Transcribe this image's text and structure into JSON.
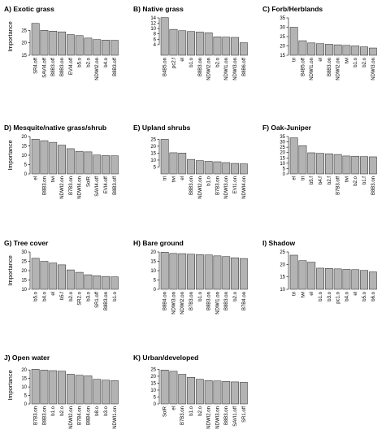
{
  "figure": {
    "colors": {
      "bar_fill": "#b3b3b3",
      "bar_stroke": "#222222",
      "axis": "#000000"
    }
  },
  "chart_data": [
    {
      "type": "bar",
      "title": "A) Exotic grass",
      "ylabel": "Importance",
      "ylim": [
        15,
        30
      ],
      "yticks": [
        15,
        20,
        25
      ],
      "categories": [
        "SR4.off",
        "SAVI4.off",
        "B8B3.off",
        "B8B3.on",
        "EVI4.off",
        "b5.o",
        "b2.o",
        "NDWI2.on",
        "b4.o",
        "B8B3.off"
      ],
      "values": [
        27.8,
        25.0,
        24.7,
        24.4,
        23.3,
        22.9,
        21.9,
        21.3,
        21.1,
        21.0
      ]
    },
    {
      "type": "bar",
      "title": "B) Native grass",
      "ylabel": "",
      "ylim": [
        0,
        14
      ],
      "yticks": [
        4,
        6,
        8,
        10,
        12,
        14
      ],
      "categories": [
        "B4B5.on",
        "pc2.f",
        "el",
        "b1.o",
        "B8B3.on",
        "NDWI2.on",
        "b2.o",
        "NDWI1.on",
        "NDWI3.on",
        "B8B6.off"
      ],
      "values": [
        14.1,
        9.7,
        9.2,
        8.9,
        8.7,
        8.4,
        6.9,
        6.8,
        6.7,
        4.7
      ]
    },
    {
      "type": "bar",
      "title": "C) Forb/Herblands",
      "ylabel": "",
      "ylim": [
        15,
        35
      ],
      "yticks": [
        15,
        20,
        25,
        30,
        35
      ],
      "categories": [
        "tri",
        "B4B5.off",
        "NDWI1.on",
        "el",
        "B8B3.on",
        "NDWI2.on",
        "twi",
        "b1.o",
        "b2.o",
        "NDWI3.on"
      ],
      "values": [
        30.0,
        22.8,
        21.6,
        21.2,
        20.9,
        20.6,
        20.3,
        20.0,
        19.5,
        18.9
      ]
    },
    {
      "type": "bar",
      "title": "D) Mesquite/native grass/shrub",
      "ylabel": "Importance",
      "ylim": [
        0,
        20
      ],
      "yticks": [
        0,
        5,
        10,
        15,
        20
      ],
      "categories": [
        "el",
        "B8B3.on",
        "twi",
        "NDWI2.on",
        "B7B3.on",
        "NDWI4.on",
        "SolR",
        "SAVI4.off",
        "EVI4.off",
        "B8B3.off"
      ],
      "values": [
        18.6,
        17.8,
        16.9,
        15.4,
        13.5,
        12.1,
        11.8,
        10.1,
        9.8,
        9.7
      ]
    },
    {
      "type": "bar",
      "title": "E) Upland shrubs",
      "ylabel": "",
      "ylim": [
        0,
        27
      ],
      "yticks": [
        5,
        10,
        15,
        20,
        25
      ],
      "categories": [
        "tri",
        "twi",
        "el",
        "B8B3.on",
        "NDWI2.on",
        "b1.o",
        "B7B3.on",
        "NDWI3.on",
        "EVI1.on",
        "NDWI4.on"
      ],
      "values": [
        25.0,
        15.3,
        15.1,
        10.5,
        9.6,
        9.1,
        8.8,
        8.2,
        7.6,
        7.3
      ]
    },
    {
      "type": "bar",
      "title": "F) Oak-Juniper",
      "ylabel": "",
      "ylim": [
        0,
        35
      ],
      "yticks": [
        0,
        5,
        10,
        15,
        20,
        25,
        30,
        35
      ],
      "categories": [
        "el",
        "tri",
        "b5.f",
        "b4.f",
        "b2.f",
        "B7B3.off",
        "twi",
        "b2.o",
        "b1.f",
        "B8B3.on"
      ],
      "values": [
        33.8,
        26.5,
        19.8,
        19.3,
        18.9,
        18.2,
        16.8,
        16.6,
        16.2,
        16.0
      ]
    },
    {
      "type": "bar",
      "title": "G) Tree cover",
      "ylabel": "Importance",
      "ylim": [
        10,
        30
      ],
      "yticks": [
        10,
        15,
        20,
        25,
        30
      ],
      "categories": [
        "b5.o",
        "b4.o",
        "el",
        "b5.f",
        "b2.o",
        "SR2.o",
        "b3.o",
        "SR1.off",
        "B8B3.on",
        "b1.o"
      ],
      "values": [
        26.6,
        25.0,
        24.1,
        23.1,
        20.4,
        19.1,
        17.8,
        17.3,
        16.9,
        16.7
      ]
    },
    {
      "type": "bar",
      "title": "H) Bare ground",
      "ylabel": "",
      "ylim": [
        0,
        20
      ],
      "yticks": [
        0,
        5,
        10,
        15,
        20
      ],
      "categories": [
        "B8B4.on",
        "NDWI3.on",
        "NDWI2.on",
        "B7B3.on",
        "b1.o",
        "B8B3.on",
        "NDWI1.on",
        "B8B3.on",
        "b2.o",
        "B7B4.on"
      ],
      "values": [
        19.9,
        19.2,
        19.1,
        18.8,
        18.6,
        18.4,
        17.9,
        17.5,
        16.9,
        16.5
      ]
    },
    {
      "type": "bar",
      "title": "I) Shadow",
      "ylabel": "",
      "ylim": [
        10,
        25
      ],
      "yticks": [
        10,
        15,
        20,
        25
      ],
      "categories": [
        "tri",
        "twi",
        "el",
        "b1.o",
        "b3.o",
        "pc1.o",
        "b4.o",
        "el",
        "b5.o",
        "b6.o"
      ],
      "values": [
        23.7,
        21.5,
        20.9,
        18.5,
        18.4,
        18.2,
        18.0,
        17.9,
        17.6,
        17.0
      ]
    },
    {
      "type": "bar",
      "title": "J) Open water",
      "ylabel": "Importance",
      "ylim": [
        0,
        22
      ],
      "yticks": [
        0,
        5,
        10,
        15,
        20
      ],
      "categories": [
        "B7B3.on",
        "B8B3.on",
        "b1.o",
        "b2.o",
        "NDWI2.on",
        "B7B4.on",
        "B8B4.on",
        "b8.o",
        "b3.o",
        "NDWI1.on"
      ],
      "values": [
        20.4,
        19.9,
        19.6,
        19.3,
        17.5,
        16.9,
        16.5,
        14.5,
        14.0,
        13.7
      ]
    },
    {
      "type": "bar",
      "title": "K) Urban/developed",
      "ylabel": "",
      "ylim": [
        0,
        27
      ],
      "yticks": [
        0,
        5,
        10,
        15,
        20,
        25
      ],
      "categories": [
        "SolR",
        "el",
        "B7B3.on",
        "b1.o",
        "b2.o",
        "NDWI2.on",
        "NDWI3.on",
        "B8B3.on",
        "SAVI1.off",
        "SR1.off"
      ],
      "values": [
        24.5,
        23.6,
        21.4,
        19.2,
        17.8,
        16.9,
        16.6,
        16.3,
        15.9,
        15.6
      ]
    }
  ]
}
